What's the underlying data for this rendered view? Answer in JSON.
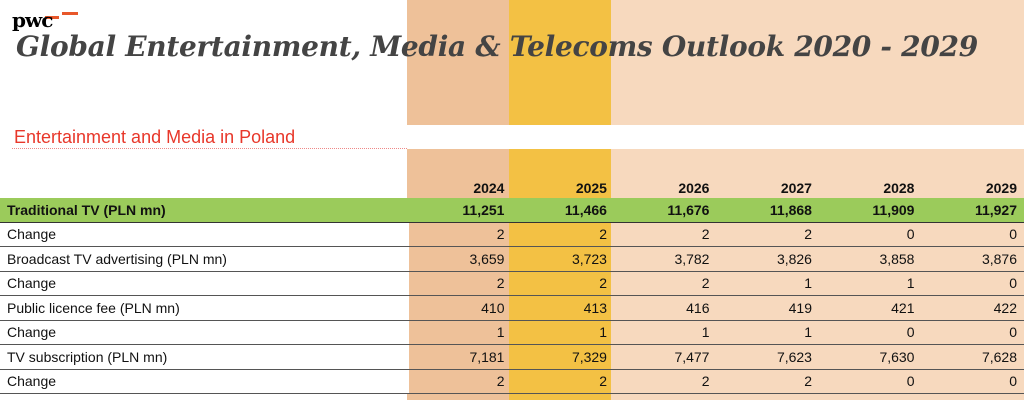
{
  "logo": "pwc",
  "title": "Global Entertainment, Media & Telecoms Outlook 2020 - 2029",
  "subtitle": "Entertainment and Media in Poland",
  "colors": {
    "col2024": "#EEC199",
    "col2025": "#F3C144",
    "col_future": "#F7D9BE",
    "main_row": "#9BCB5B",
    "subtitle": "#E8372A"
  },
  "years": [
    "2024",
    "2025",
    "2026",
    "2027",
    "2028",
    "2029"
  ],
  "rows": [
    {
      "label": "Traditional TV (PLN mn)",
      "values": [
        "11,251",
        "11,466",
        "11,676",
        "11,868",
        "11,909",
        "11,927"
      ]
    },
    {
      "label": "Change",
      "values": [
        "2",
        "2",
        "2",
        "2",
        "0",
        "0"
      ]
    },
    {
      "label": "Broadcast TV advertising (PLN mn)",
      "values": [
        "3,659",
        "3,723",
        "3,782",
        "3,826",
        "3,858",
        "3,876"
      ]
    },
    {
      "label": "Change",
      "values": [
        "2",
        "2",
        "2",
        "1",
        "1",
        "0"
      ]
    },
    {
      "label": "Public licence fee (PLN mn)",
      "values": [
        "410",
        "413",
        "416",
        "419",
        "421",
        "422"
      ]
    },
    {
      "label": "Change",
      "values": [
        "1",
        "1",
        "1",
        "1",
        "0",
        "0"
      ]
    },
    {
      "label": "TV subscription (PLN mn)",
      "values": [
        "7,181",
        "7,329",
        "7,477",
        "7,623",
        "7,630",
        "7,628"
      ]
    },
    {
      "label": "Change",
      "values": [
        "2",
        "2",
        "2",
        "2",
        "0",
        "0"
      ]
    }
  ]
}
